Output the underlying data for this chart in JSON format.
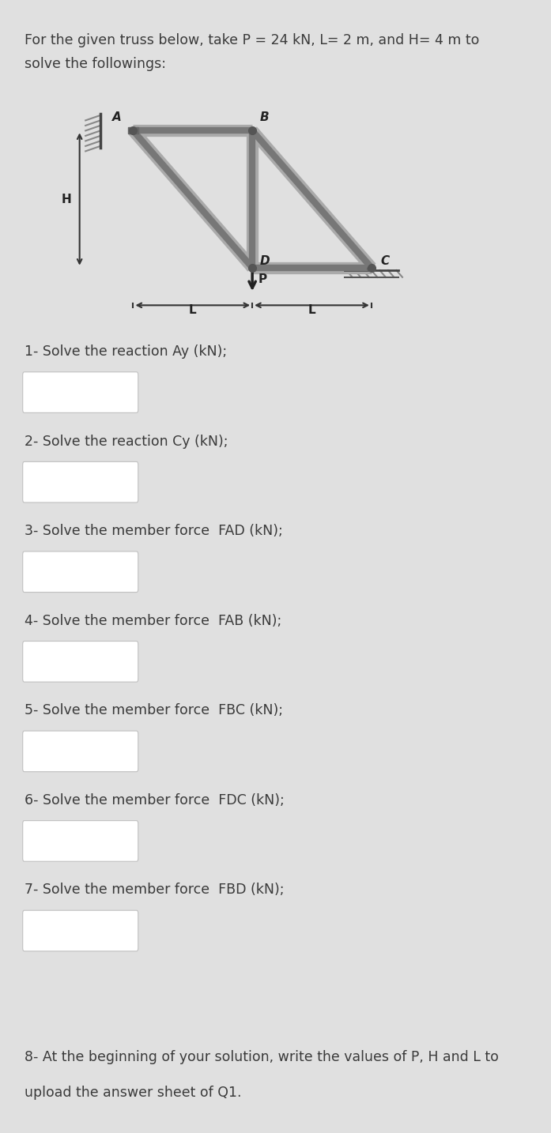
{
  "bg_color": "#e0e0e0",
  "card1_color": "#f2f2f2",
  "card2_color": "#ebebeb",
  "white": "#ffffff",
  "title_line1": "For the given truss below, take P = 24 kN, L= 2 m, and H= 4 m to",
  "title_line2": "solve the followings:",
  "questions": [
    "1- Solve the reaction Ay (kN);",
    "2- Solve the reaction Cy (kN);",
    "3- Solve the member force  FAD (kN);",
    "4- Solve the member force  FAB (kN);",
    "5- Solve the member force  FBC (kN);",
    "6- Solve the member force  FDC (kN);",
    "7- Solve the member force  FBD (kN);"
  ],
  "q8_line1": "8- At the beginning of your solution, write the values of P, H and L to",
  "q8_line2": "upload the answer sheet of Q1.",
  "text_color": "#3a3a3a",
  "title_fontsize": 12.5,
  "question_fontsize": 12.5,
  "q8_fontsize": 12.5
}
